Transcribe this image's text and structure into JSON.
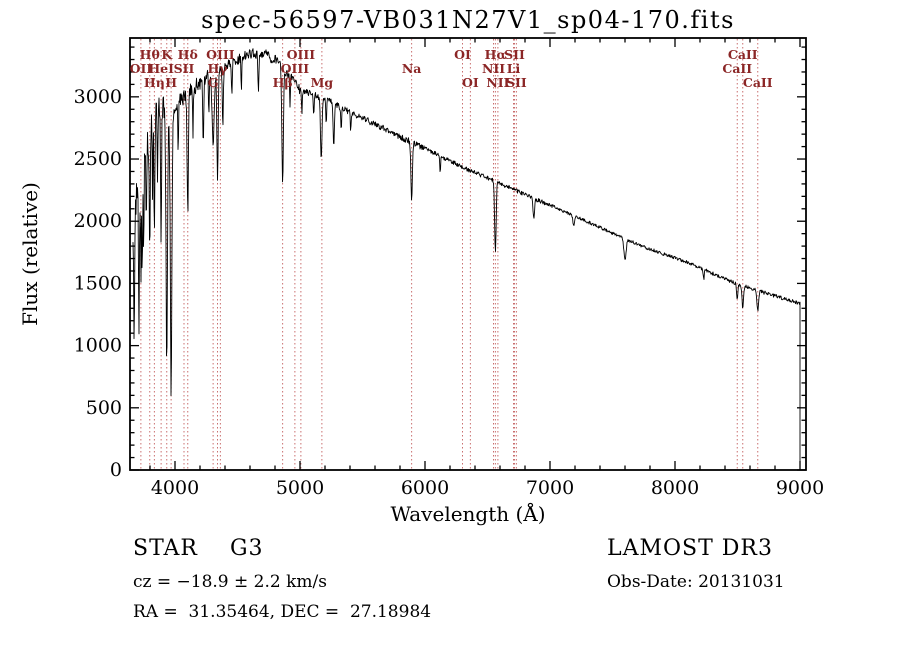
{
  "title": "spec-56597-VB031N27V1_sp04-170.fits",
  "axes": {
    "xlabel": "Wavelength (Å)",
    "ylabel": "Flux (relative)",
    "x_ticks": [
      4000,
      5000,
      6000,
      7000,
      8000,
      9000
    ],
    "y_ticks": [
      0,
      500,
      1000,
      1500,
      2000,
      2500,
      3000
    ],
    "x_minor_step": 200,
    "y_minor_step": 100
  },
  "footer": {
    "class_label": "STAR    G3",
    "cz": "cz = −18.9 ± 2.2 km/s",
    "coords": "RA =  31.35464, DEC =  27.18984",
    "survey": "LAMOST DR3",
    "obs_date": "Obs-Date: 20131031"
  },
  "colors": {
    "spectrum": "#000000",
    "axis": "#000000",
    "line_marker": "#c96f6f",
    "marker_label": "#8b2626",
    "background": "#ffffff"
  },
  "chart_data": {
    "type": "line",
    "title": "spec-56597-VB031N27V1_sp04-170.fits",
    "xlabel": "Wavelength (Å)",
    "ylabel": "Flux (relative)",
    "xlim": [
      3640,
      9048
    ],
    "ylim": [
      0,
      3473
    ],
    "grid": false,
    "legend": "none",
    "wavelength_range": [
      3664,
      9000
    ],
    "sample_step": 4,
    "continuum": {
      "x": [
        3660,
        3690,
        3720,
        3750,
        3800,
        3850,
        3900,
        3950,
        4000,
        4050,
        4100,
        4200,
        4300,
        4400,
        4500,
        4600,
        4700,
        4800,
        4900,
        5000,
        5100,
        5200,
        5300,
        5400,
        5500,
        5600,
        5700,
        5800,
        5900,
        6000,
        6100,
        6200,
        6300,
        6400,
        6500,
        6600,
        6700,
        6800,
        6900,
        7000,
        7100,
        7200,
        7300,
        7400,
        7500,
        7600,
        7700,
        7800,
        7900,
        8000,
        8100,
        8200,
        8300,
        8400,
        8500,
        8600,
        8700,
        8800,
        8900,
        8960,
        9000
      ],
      "flux": [
        1900,
        2150,
        2350,
        2550,
        2750,
        2900,
        2960,
        2800,
        2920,
        2990,
        3020,
        3120,
        3170,
        3240,
        3300,
        3345,
        3350,
        3300,
        3180,
        3060,
        3020,
        2985,
        2930,
        2880,
        2830,
        2780,
        2730,
        2680,
        2635,
        2585,
        2535,
        2485,
        2435,
        2390,
        2350,
        2305,
        2260,
        2215,
        2170,
        2130,
        2085,
        2040,
        1995,
        1950,
        1905,
        1860,
        1815,
        1775,
        1740,
        1705,
        1670,
        1625,
        1580,
        1535,
        1495,
        1465,
        1430,
        1400,
        1370,
        1350,
        1335
      ]
    },
    "absorption_lines": [
      {
        "wavelength": 3673,
        "depth": 900,
        "sigma": 4
      },
      {
        "wavelength": 3712,
        "depth": 1100,
        "sigma": 4
      },
      {
        "wavelength": 3727,
        "depth": 800,
        "sigma": 3
      },
      {
        "wavelength": 3737,
        "depth": 950,
        "sigma": 3
      },
      {
        "wavelength": 3750,
        "depth": 800,
        "sigma": 3
      },
      {
        "wavelength": 3771,
        "depth": 700,
        "sigma": 3
      },
      {
        "wavelength": 3798,
        "depth": 900,
        "sigma": 4
      },
      {
        "wavelength": 3820,
        "depth": 550,
        "sigma": 3
      },
      {
        "wavelength": 3835,
        "depth": 950,
        "sigma": 4
      },
      {
        "wavelength": 3860,
        "depth": 500,
        "sigma": 3
      },
      {
        "wavelength": 3889,
        "depth": 1050,
        "sigma": 4
      },
      {
        "wavelength": 3934,
        "depth": 1950,
        "sigma": 6
      },
      {
        "wavelength": 3969,
        "depth": 2250,
        "sigma": 6
      },
      {
        "wavelength": 4026,
        "depth": 400,
        "sigma": 3
      },
      {
        "wavelength": 4102,
        "depth": 950,
        "sigma": 5
      },
      {
        "wavelength": 4144,
        "depth": 350,
        "sigma": 3
      },
      {
        "wavelength": 4226,
        "depth": 500,
        "sigma": 4
      },
      {
        "wavelength": 4271,
        "depth": 350,
        "sigma": 3
      },
      {
        "wavelength": 4305,
        "depth": 550,
        "sigma": 8
      },
      {
        "wavelength": 4340,
        "depth": 900,
        "sigma": 5
      },
      {
        "wavelength": 4383,
        "depth": 450,
        "sigma": 4
      },
      {
        "wavelength": 4455,
        "depth": 280,
        "sigma": 3
      },
      {
        "wavelength": 4531,
        "depth": 280,
        "sigma": 3
      },
      {
        "wavelength": 4668,
        "depth": 300,
        "sigma": 4
      },
      {
        "wavelength": 4861,
        "depth": 950,
        "sigma": 6
      },
      {
        "wavelength": 4920,
        "depth": 280,
        "sigma": 3
      },
      {
        "wavelength": 5015,
        "depth": 220,
        "sigma": 3
      },
      {
        "wavelength": 5110,
        "depth": 200,
        "sigma": 3
      },
      {
        "wavelength": 5170,
        "depth": 500,
        "sigma": 6
      },
      {
        "wavelength": 5210,
        "depth": 200,
        "sigma": 3
      },
      {
        "wavelength": 5270,
        "depth": 350,
        "sigma": 5
      },
      {
        "wavelength": 5330,
        "depth": 200,
        "sigma": 3
      },
      {
        "wavelength": 5405,
        "depth": 150,
        "sigma": 3
      },
      {
        "wavelength": 5893,
        "depth": 480,
        "sigma": 6
      },
      {
        "wavelength": 6122,
        "depth": 140,
        "sigma": 3
      },
      {
        "wavelength": 6563,
        "depth": 580,
        "sigma": 6
      },
      {
        "wavelength": 6870,
        "depth": 160,
        "sigma": 6
      },
      {
        "wavelength": 7190,
        "depth": 90,
        "sigma": 6
      },
      {
        "wavelength": 7600,
        "depth": 170,
        "sigma": 9
      },
      {
        "wavelength": 8230,
        "depth": 80,
        "sigma": 4
      },
      {
        "wavelength": 8498,
        "depth": 130,
        "sigma": 5
      },
      {
        "wavelength": 8542,
        "depth": 190,
        "sigma": 6
      },
      {
        "wavelength": 8662,
        "depth": 170,
        "sigma": 6
      }
    ],
    "noise": [
      {
        "max_wavelength": 3800,
        "amplitude": 150
      },
      {
        "max_wavelength": 3960,
        "amplitude": 100
      },
      {
        "max_wavelength": 4300,
        "amplitude": 65
      },
      {
        "max_wavelength": 5000,
        "amplitude": 42
      },
      {
        "max_wavelength": 6000,
        "amplitude": 26
      },
      {
        "max_wavelength": 7000,
        "amplitude": 17
      },
      {
        "max_wavelength": 8200,
        "amplitude": 13
      },
      {
        "max_wavelength": 9100,
        "amplitude": 15
      }
    ],
    "edge_drop": {
      "wavelength": 9000,
      "flux": 15
    },
    "spectral_lines": [
      {
        "label": "Hθ",
        "wavelength": 3798,
        "row": 1
      },
      {
        "label": "K",
        "wavelength": 3934,
        "row": 1
      },
      {
        "label": "Hδ",
        "wavelength": 4102,
        "row": 1
      },
      {
        "label": "OII",
        "wavelength": 3727,
        "row": 2
      },
      {
        "label": "HeI",
        "wavelength": 3889,
        "row": 2
      },
      {
        "label": "SII",
        "wavelength": 4072,
        "row": 2
      },
      {
        "label": "Hη",
        "wavelength": 3835,
        "row": 3
      },
      {
        "label": "H",
        "wavelength": 3969,
        "row": 3
      },
      {
        "label": "G",
        "wavelength": 4305,
        "row": 3
      },
      {
        "label": "OIII",
        "wavelength": 4363,
        "row": 1
      },
      {
        "label": "Hγ",
        "wavelength": 4340,
        "row": 2
      },
      {
        "label": "OIII",
        "wavelength": 5007,
        "row": 1
      },
      {
        "label": "OIII",
        "wavelength": 4959,
        "row": 2
      },
      {
        "label": "Hβ",
        "wavelength": 4861,
        "row": 3
      },
      {
        "label": "Mg",
        "wavelength": 5175,
        "row": 3
      },
      {
        "label": "Na",
        "wavelength": 5893,
        "row": 2
      },
      {
        "label": "OI",
        "wavelength": 6300,
        "row": 1
      },
      {
        "label": "OI",
        "wavelength": 6363,
        "row": 3
      },
      {
        "label": "Hα",
        "wavelength": 6563,
        "row": 1
      },
      {
        "label": "SII",
        "wavelength": 6716,
        "row": 1
      },
      {
        "label": "NII",
        "wavelength": 6548,
        "row": 2
      },
      {
        "label": "Li",
        "wavelength": 6708,
        "row": 2
      },
      {
        "label": "NII",
        "wavelength": 6583,
        "row": 3
      },
      {
        "label": "SII",
        "wavelength": 6731,
        "row": 3
      },
      {
        "label": "CaII",
        "wavelength": 8542,
        "row": 1
      },
      {
        "label": "CaII",
        "wavelength": 8498,
        "row": 2
      },
      {
        "label": "CaII",
        "wavelength": 8662,
        "row": 3
      }
    ]
  }
}
